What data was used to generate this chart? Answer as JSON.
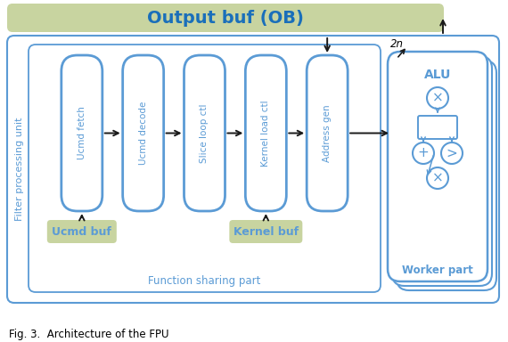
{
  "title": "Output buf (OB)",
  "title_color": "#1a6fba",
  "title_bg": "#c8d4a0",
  "fig_bg": "#ffffff",
  "blue": "#5b9bd5",
  "dark_blue": "#1a6fba",
  "arrow_color": "#1a1a1a",
  "fpu_label": "Filter processing unit",
  "pipeline_boxes": [
    "Ucmd fetch",
    "Ucmd decode",
    "Slice loop ctl",
    "Kernel load ctl",
    "Address gen"
  ],
  "buf_boxes": [
    "Ucmd buf",
    "Kernel buf"
  ],
  "function_sharing_label": "Function sharing part",
  "worker_part_label": "Worker part",
  "alu_label": "ALU",
  "label_2n": "2n",
  "caption": "Fig. 3.  Architecture of the FPU"
}
